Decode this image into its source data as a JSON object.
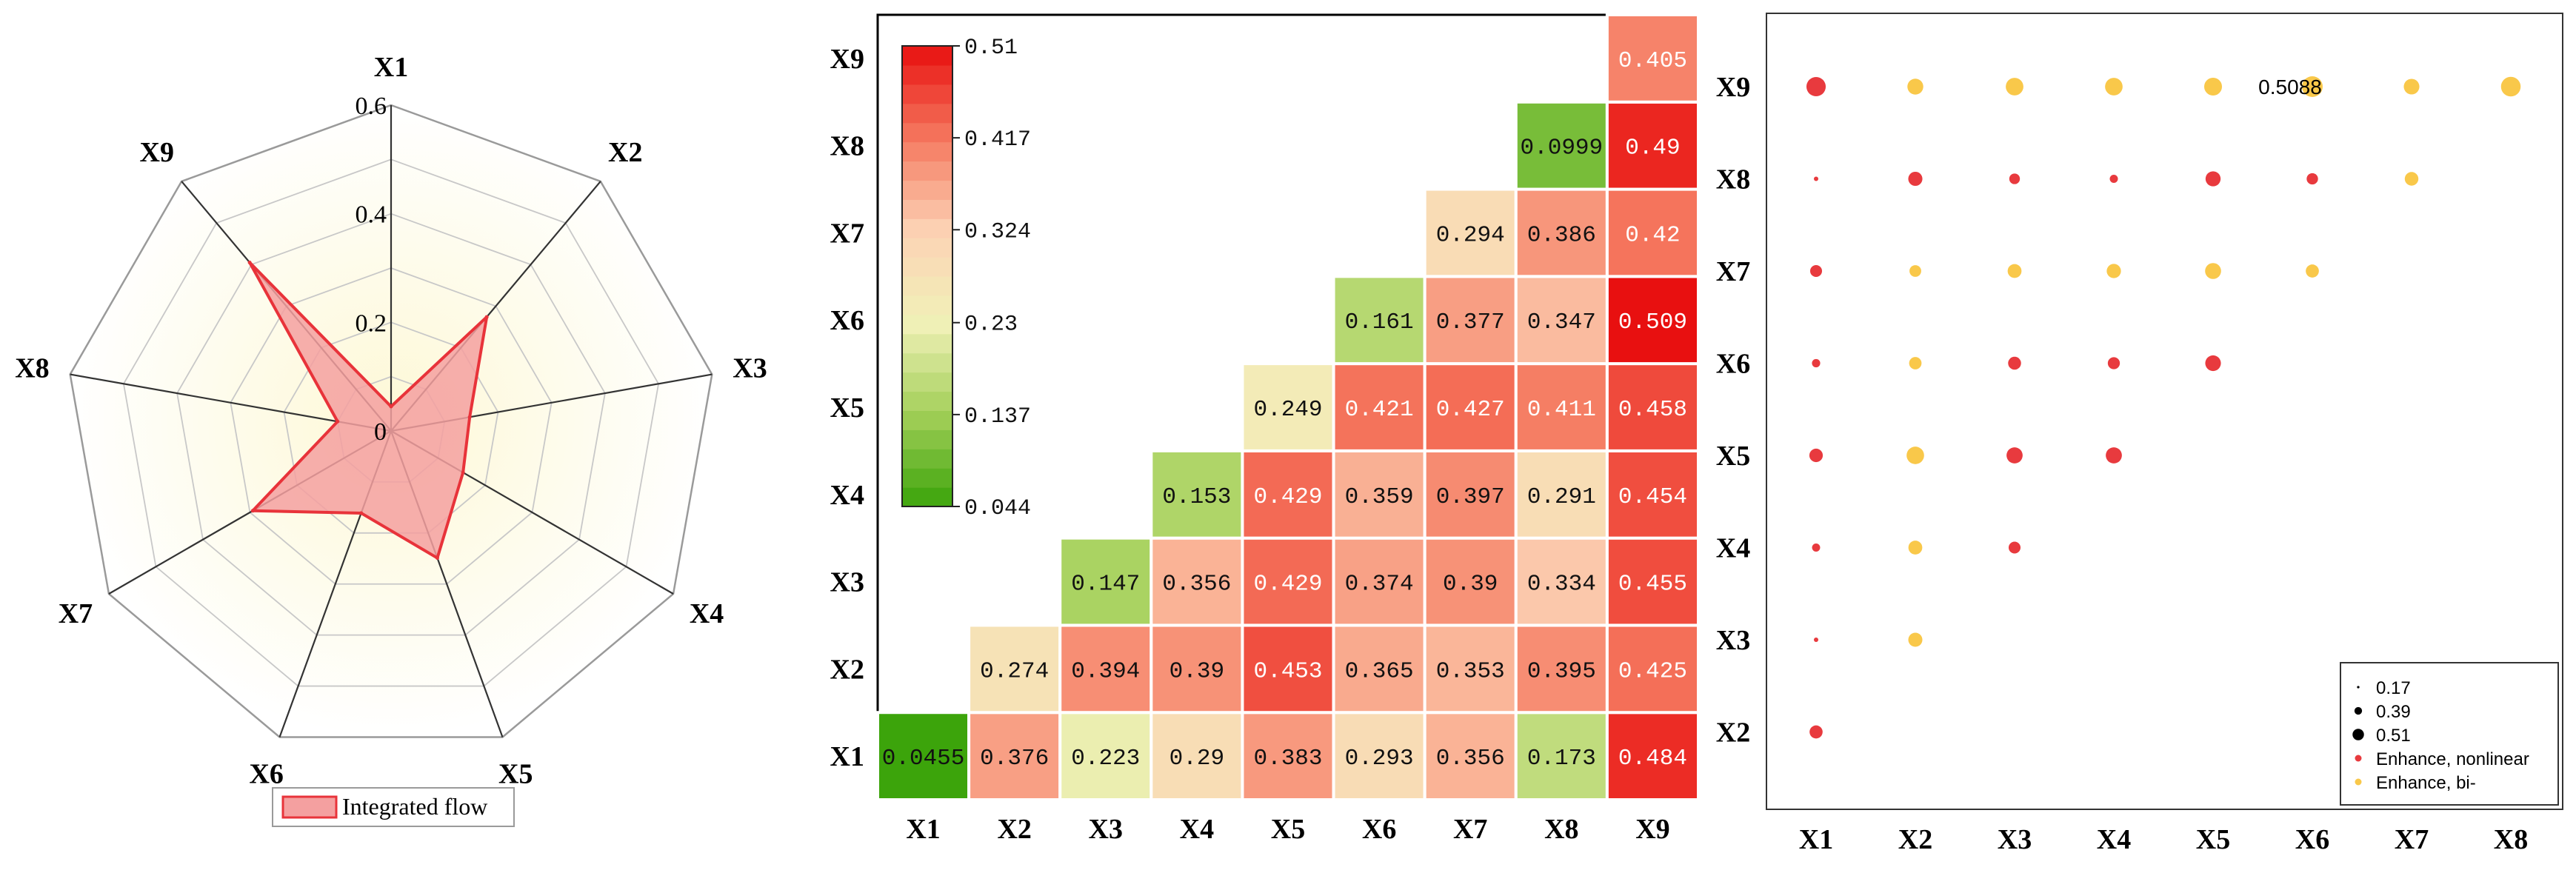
{
  "chart_data": [
    {
      "type": "radar",
      "axes": [
        "X1",
        "X2",
        "X3",
        "X4",
        "X5",
        "X6",
        "X7",
        "X8",
        "X9"
      ],
      "rlim": [
        0,
        0.6
      ],
      "rticks": [
        "0",
        "0.2",
        "0.4",
        "0.6"
      ],
      "rtick_values": [
        0,
        0.2,
        0.4,
        0.6
      ],
      "series": [
        {
          "name": "Integrated flow",
          "values": [
            0.045,
            0.274,
            0.147,
            0.153,
            0.249,
            0.161,
            0.294,
            0.1,
            0.405
          ]
        }
      ],
      "colors": {
        "fill": "#f4a0a0",
        "line": "#e8333a",
        "glow": "#faf3c6"
      },
      "legend": "bottom-center"
    },
    {
      "type": "heatmap",
      "x_categories": [
        "X1",
        "X2",
        "X3",
        "X4",
        "X5",
        "X6",
        "X7",
        "X8",
        "X9"
      ],
      "y_categories": [
        "X1",
        "X2",
        "X3",
        "X4",
        "X5",
        "X6",
        "X7",
        "X8",
        "X9"
      ],
      "layout": "upper-triangle, X1 at bottom",
      "cells": [
        [
          "0.0455",
          "0.376",
          "0.223",
          "0.29",
          "0.383",
          "0.293",
          "0.356",
          "0.173",
          "0.484"
        ],
        [
          null,
          "0.274",
          "0.394",
          "0.39",
          "0.453",
          "0.365",
          "0.353",
          "0.395",
          "0.425"
        ],
        [
          null,
          null,
          "0.147",
          "0.356",
          "0.429",
          "0.374",
          "0.39",
          "0.334",
          "0.455"
        ],
        [
          null,
          null,
          null,
          "0.153",
          "0.429",
          "0.359",
          "0.397",
          "0.291",
          "0.454"
        ],
        [
          null,
          null,
          null,
          null,
          "0.249",
          "0.421",
          "0.427",
          "0.411",
          "0.458"
        ],
        [
          null,
          null,
          null,
          null,
          null,
          "0.161",
          "0.377",
          "0.347",
          "0.509"
        ],
        [
          null,
          null,
          null,
          null,
          null,
          null,
          "0.294",
          "0.386",
          "0.42"
        ],
        [
          null,
          null,
          null,
          null,
          null,
          null,
          null,
          "0.0999",
          "0.49"
        ],
        [
          null,
          null,
          null,
          null,
          null,
          null,
          null,
          null,
          "0.405"
        ]
      ],
      "colorbar": {
        "range": [
          0.044,
          0.51
        ],
        "ticks": [
          "0.51",
          "0.417",
          "0.324",
          "0.23",
          "0.137",
          "0.044"
        ],
        "tick_values": [
          0.51,
          0.417,
          0.324,
          0.23,
          0.137,
          0.044
        ],
        "colors": [
          "#3aa30a",
          "#a2cf58",
          "#f1f1b8",
          "#fcd2b4",
          "#f5785f",
          "#e80f0f"
        ],
        "legend": "top-left"
      }
    },
    {
      "type": "scatter",
      "x_categories": [
        "X1",
        "X2",
        "X3",
        "X4",
        "X5",
        "X6",
        "X7",
        "X8"
      ],
      "y_categories": [
        "X2",
        "X3",
        "X4",
        "X5",
        "X6",
        "X7",
        "X8",
        "X9"
      ],
      "annotation": {
        "text": "0.5088",
        "x": "X6",
        "y": "X9"
      },
      "points": [
        {
          "x": "X1",
          "y": "X9",
          "value": 0.484,
          "type": "nonlinear"
        },
        {
          "x": "X2",
          "y": "X9",
          "value": 0.425,
          "type": "bi"
        },
        {
          "x": "X3",
          "y": "X9",
          "value": 0.455,
          "type": "bi"
        },
        {
          "x": "X4",
          "y": "X9",
          "value": 0.454,
          "type": "bi"
        },
        {
          "x": "X5",
          "y": "X9",
          "value": 0.458,
          "type": "bi"
        },
        {
          "x": "X6",
          "y": "X9",
          "value": 0.509,
          "type": "bi"
        },
        {
          "x": "X7",
          "y": "X9",
          "value": 0.42,
          "type": "bi"
        },
        {
          "x": "X8",
          "y": "X9",
          "value": 0.49,
          "type": "bi"
        },
        {
          "x": "X1",
          "y": "X8",
          "value": 0.173,
          "type": "nonlinear"
        },
        {
          "x": "X2",
          "y": "X8",
          "value": 0.395,
          "type": "nonlinear"
        },
        {
          "x": "X3",
          "y": "X8",
          "value": 0.334,
          "type": "nonlinear"
        },
        {
          "x": "X4",
          "y": "X8",
          "value": 0.291,
          "type": "nonlinear"
        },
        {
          "x": "X5",
          "y": "X8",
          "value": 0.411,
          "type": "nonlinear"
        },
        {
          "x": "X6",
          "y": "X8",
          "value": 0.347,
          "type": "nonlinear"
        },
        {
          "x": "X7",
          "y": "X8",
          "value": 0.386,
          "type": "bi"
        },
        {
          "x": "X1",
          "y": "X7",
          "value": 0.356,
          "type": "nonlinear"
        },
        {
          "x": "X2",
          "y": "X7",
          "value": 0.353,
          "type": "bi"
        },
        {
          "x": "X3",
          "y": "X7",
          "value": 0.39,
          "type": "bi"
        },
        {
          "x": "X4",
          "y": "X7",
          "value": 0.397,
          "type": "bi"
        },
        {
          "x": "X5",
          "y": "X7",
          "value": 0.427,
          "type": "bi"
        },
        {
          "x": "X6",
          "y": "X7",
          "value": 0.377,
          "type": "bi"
        },
        {
          "x": "X1",
          "y": "X6",
          "value": 0.293,
          "type": "nonlinear"
        },
        {
          "x": "X2",
          "y": "X6",
          "value": 0.365,
          "type": "bi"
        },
        {
          "x": "X3",
          "y": "X6",
          "value": 0.374,
          "type": "nonlinear"
        },
        {
          "x": "X4",
          "y": "X6",
          "value": 0.359,
          "type": "nonlinear"
        },
        {
          "x": "X5",
          "y": "X6",
          "value": 0.421,
          "type": "nonlinear"
        },
        {
          "x": "X1",
          "y": "X5",
          "value": 0.383,
          "type": "nonlinear"
        },
        {
          "x": "X2",
          "y": "X5",
          "value": 0.453,
          "type": "bi"
        },
        {
          "x": "X3",
          "y": "X5",
          "value": 0.429,
          "type": "nonlinear"
        },
        {
          "x": "X4",
          "y": "X5",
          "value": 0.429,
          "type": "nonlinear"
        },
        {
          "x": "X1",
          "y": "X4",
          "value": 0.29,
          "type": "nonlinear"
        },
        {
          "x": "X2",
          "y": "X4",
          "value": 0.39,
          "type": "bi"
        },
        {
          "x": "X3",
          "y": "X4",
          "value": 0.356,
          "type": "nonlinear"
        },
        {
          "x": "X1",
          "y": "X3",
          "value": 0.223,
          "type": "nonlinear"
        },
        {
          "x": "X2",
          "y": "X3",
          "value": 0.394,
          "type": "bi"
        },
        {
          "x": "X1",
          "y": "X2",
          "value": 0.376,
          "type": "nonlinear"
        }
      ],
      "legend": {
        "position": "bottom-right",
        "size_entries": [
          {
            "label": "0.17",
            "value": 0.17
          },
          {
            "label": "0.39",
            "value": 0.39
          },
          {
            "label": "0.51",
            "value": 0.51
          }
        ],
        "color_entries": [
          {
            "label": "Enhance, nonlinear",
            "type": "nonlinear"
          },
          {
            "label": "Enhance, bi-",
            "type": "bi"
          }
        ]
      },
      "colors": {
        "nonlinear": "#e83a3e",
        "bi": "#f9c84a"
      }
    }
  ]
}
